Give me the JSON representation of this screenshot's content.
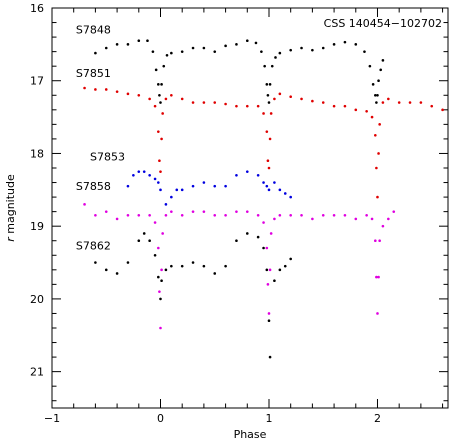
{
  "chart_data": {
    "type": "scatter",
    "title": "",
    "annotation": "CSS 140454−102702",
    "xlabel": "Phase",
    "ylabel": "r magnitude",
    "ylabel_italic_part": "r",
    "ylabel_rest": " magnitude",
    "xlim": [
      -1,
      2.65
    ],
    "ylim": [
      21.5,
      16
    ],
    "y_inverted": true,
    "grid": false,
    "x_ticks": [
      -1,
      0,
      1,
      2
    ],
    "x_tick_labels": [
      "−1",
      "0",
      "1",
      "2"
    ],
    "y_ticks": [
      16,
      17,
      18,
      19,
      20,
      21
    ],
    "y_tick_labels": [
      "16",
      "17",
      "18",
      "19",
      "20",
      "21"
    ],
    "series": [
      {
        "name": "S7848",
        "color": "#000000",
        "label_at": [
          -0.78,
          16.35
        ],
        "x": [
          -0.6,
          -0.5,
          -0.4,
          -0.3,
          -0.2,
          -0.12,
          -0.07,
          -0.04,
          -0.02,
          -0.01,
          0.0,
          0.01,
          0.03,
          0.06,
          0.1,
          0.2,
          0.3,
          0.4,
          0.5,
          0.6,
          0.7,
          0.8,
          0.88,
          0.93,
          0.96,
          0.98,
          0.99,
          1.0,
          1.01,
          1.03,
          1.06,
          1.1,
          1.2,
          1.3,
          1.4,
          1.5,
          1.6,
          1.7,
          1.8,
          1.88,
          1.93,
          1.96,
          1.98,
          1.99,
          2.0,
          2.01,
          2.03,
          2.05
        ],
        "y": [
          16.62,
          16.55,
          16.5,
          16.5,
          16.45,
          16.45,
          16.6,
          16.85,
          17.05,
          17.2,
          17.3,
          17.05,
          16.8,
          16.65,
          16.62,
          16.6,
          16.55,
          16.55,
          16.6,
          16.52,
          16.5,
          16.45,
          16.48,
          16.6,
          16.8,
          17.05,
          17.2,
          17.3,
          17.05,
          16.8,
          16.68,
          16.62,
          16.58,
          16.55,
          16.58,
          16.55,
          16.5,
          16.47,
          16.5,
          16.6,
          16.8,
          17.05,
          17.2,
          17.3,
          17.2,
          17.0,
          16.85,
          16.72
        ]
      },
      {
        "name": "S7851",
        "color": "#e00000",
        "label_at": [
          -0.78,
          16.95
        ],
        "x": [
          -0.7,
          -0.6,
          -0.5,
          -0.4,
          -0.3,
          -0.2,
          -0.1,
          -0.05,
          -0.02,
          -0.01,
          0.0,
          0.01,
          0.02,
          0.05,
          0.1,
          0.2,
          0.3,
          0.4,
          0.5,
          0.6,
          0.7,
          0.8,
          0.9,
          0.95,
          0.98,
          0.99,
          1.0,
          1.01,
          1.02,
          1.05,
          1.1,
          1.2,
          1.3,
          1.4,
          1.5,
          1.6,
          1.7,
          1.8,
          1.9,
          1.95,
          1.98,
          1.99,
          2.0,
          2.01,
          2.02,
          2.05,
          2.1,
          2.2,
          2.3,
          2.4,
          2.5,
          2.6
        ],
        "y": [
          17.1,
          17.12,
          17.12,
          17.15,
          17.18,
          17.2,
          17.25,
          17.35,
          17.7,
          18.1,
          18.25,
          17.8,
          17.45,
          17.25,
          17.2,
          17.25,
          17.3,
          17.3,
          17.3,
          17.32,
          17.35,
          17.35,
          17.35,
          17.45,
          17.7,
          18.1,
          18.2,
          17.8,
          17.45,
          17.25,
          17.18,
          17.22,
          17.25,
          17.28,
          17.3,
          17.35,
          17.35,
          17.4,
          17.42,
          17.5,
          17.75,
          18.2,
          18.6,
          18.0,
          17.6,
          17.3,
          17.25,
          17.3,
          17.3,
          17.3,
          17.35,
          17.4
        ]
      },
      {
        "name": "S7853",
        "color": "#0000e0",
        "label_at": [
          -0.65,
          18.1
        ],
        "x": [
          -0.3,
          -0.25,
          -0.2,
          -0.15,
          -0.1,
          -0.05,
          -0.02,
          0.0,
          0.05,
          0.1,
          0.15,
          0.2,
          0.3,
          0.4,
          0.5,
          0.6,
          0.7,
          0.8,
          0.9,
          0.95,
          0.98,
          1.0,
          1.05,
          1.1,
          1.15,
          1.2
        ],
        "y": [
          18.45,
          18.3,
          18.25,
          18.25,
          18.3,
          18.35,
          18.4,
          18.5,
          18.7,
          18.6,
          18.5,
          18.5,
          18.45,
          18.4,
          18.45,
          18.45,
          18.3,
          18.25,
          18.3,
          18.4,
          18.45,
          18.5,
          18.4,
          18.5,
          18.55,
          18.6
        ]
      },
      {
        "name": "S7858",
        "color": "#e000e0",
        "label_at": [
          -0.78,
          18.5
        ],
        "x": [
          -0.7,
          -0.6,
          -0.5,
          -0.4,
          -0.3,
          -0.2,
          -0.1,
          -0.05,
          -0.02,
          -0.01,
          0.0,
          0.01,
          0.02,
          0.05,
          0.1,
          0.2,
          0.3,
          0.4,
          0.5,
          0.6,
          0.7,
          0.8,
          0.9,
          0.95,
          0.98,
          0.99,
          1.0,
          1.01,
          1.02,
          1.05,
          1.1,
          1.2,
          1.3,
          1.4,
          1.5,
          1.6,
          1.7,
          1.8,
          1.9,
          1.95,
          1.98,
          1.99,
          2.0,
          2.01,
          2.02,
          2.05,
          2.1,
          2.15
        ],
        "y": [
          18.7,
          18.85,
          18.8,
          18.9,
          18.85,
          18.85,
          18.85,
          18.95,
          19.3,
          19.9,
          20.4,
          19.6,
          19.1,
          18.85,
          18.8,
          18.85,
          18.8,
          18.8,
          18.85,
          18.85,
          18.8,
          18.8,
          18.85,
          18.95,
          19.3,
          19.8,
          20.2,
          19.6,
          19.1,
          18.9,
          18.85,
          18.85,
          18.85,
          18.9,
          18.85,
          18.85,
          18.85,
          18.9,
          18.85,
          18.9,
          19.2,
          19.7,
          20.2,
          19.7,
          19.2,
          19.0,
          18.9,
          18.8
        ]
      },
      {
        "name": "S7862",
        "color": "#000000",
        "label_at": [
          -0.78,
          19.32
        ],
        "x": [
          -0.6,
          -0.5,
          -0.4,
          -0.3,
          -0.2,
          -0.15,
          -0.1,
          -0.05,
          -0.02,
          0.0,
          0.01,
          0.05,
          0.1,
          0.2,
          0.3,
          0.4,
          0.5,
          0.6,
          0.7,
          0.8,
          0.9,
          0.95,
          0.98,
          1.0,
          1.01,
          1.05,
          1.1,
          1.15,
          1.2
        ],
        "y": [
          19.5,
          19.6,
          19.65,
          19.5,
          19.2,
          19.1,
          19.2,
          19.4,
          19.7,
          20.0,
          19.75,
          19.6,
          19.55,
          19.55,
          19.5,
          19.55,
          19.65,
          19.55,
          19.2,
          19.1,
          19.15,
          19.3,
          19.6,
          20.3,
          20.8,
          19.75,
          19.6,
          19.55,
          19.45
        ]
      }
    ]
  }
}
